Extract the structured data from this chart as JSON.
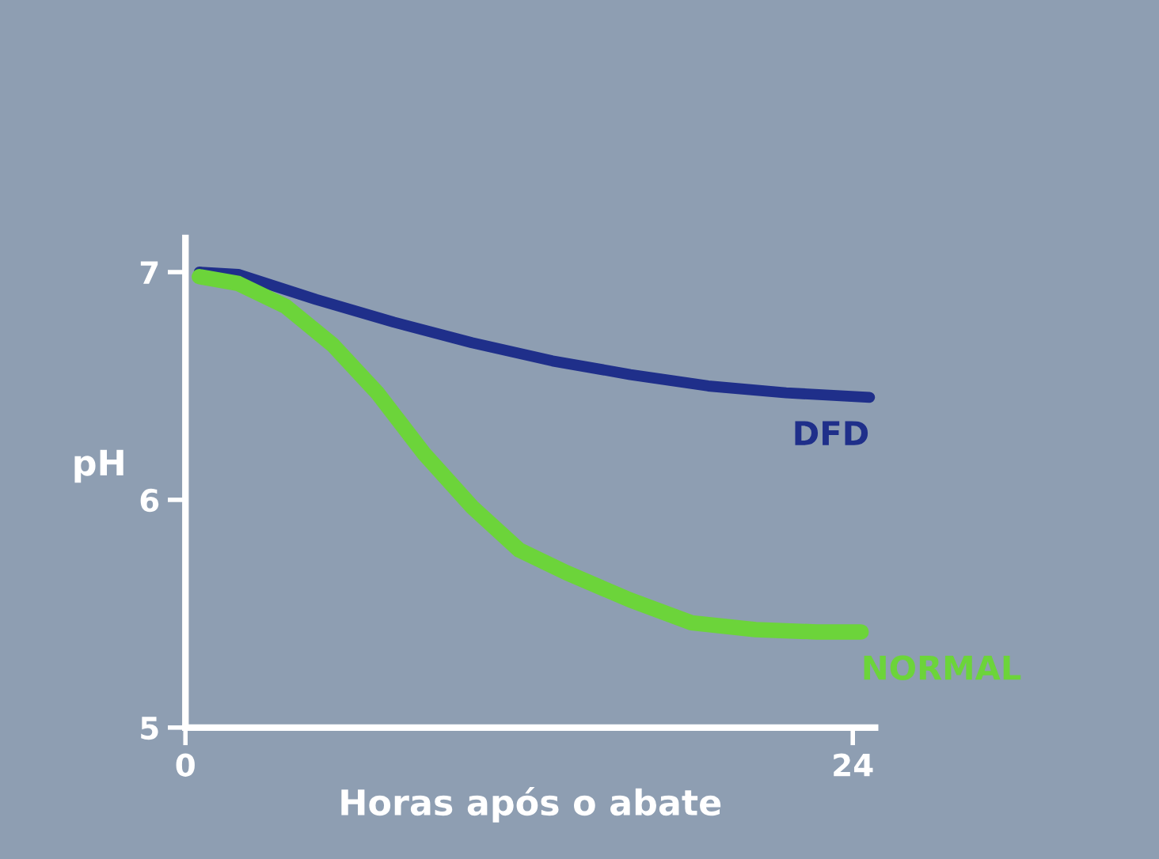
{
  "chart_data": {
    "type": "line",
    "xlabel": "Horas após o abate",
    "ylabel": "pH",
    "xlim": [
      0,
      24.8
    ],
    "xticks": [
      0,
      24
    ],
    "ylim": [
      5,
      7.15
    ],
    "yticks": [
      5,
      6,
      7
    ],
    "grid": false,
    "legend": false,
    "marker": "none",
    "line_style": "solid",
    "series": [
      {
        "name": "DFD",
        "color": "#1f2f8a",
        "x": [
          0.5,
          1.9,
          4.7,
          7.5,
          10.3,
          13.2,
          16.0,
          18.8,
          21.6,
          24.6
        ],
        "values": [
          7.0,
          6.99,
          6.88,
          6.78,
          6.69,
          6.61,
          6.55,
          6.5,
          6.47,
          6.45
        ]
      },
      {
        "name": "NORMAL",
        "color": "#6cd43a",
        "x": [
          0.5,
          1.9,
          3.6,
          5.3,
          6.9,
          8.6,
          10.3,
          12.0,
          13.7,
          16.0,
          18.2,
          20.5,
          22.7,
          24.3
        ],
        "values": [
          6.98,
          6.95,
          6.85,
          6.68,
          6.47,
          6.2,
          5.97,
          5.78,
          5.68,
          5.56,
          5.46,
          5.43,
          5.42,
          5.42
        ]
      }
    ]
  }
}
